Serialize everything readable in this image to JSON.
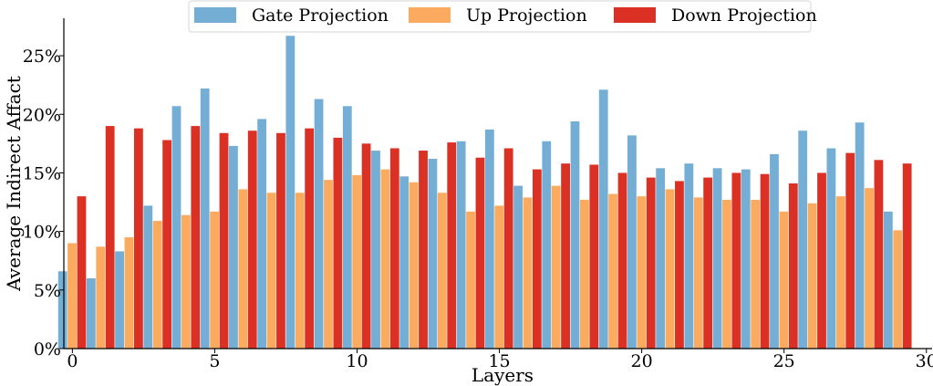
{
  "chart_data": {
    "type": "bar",
    "title": "",
    "xlabel": "Layers",
    "ylabel": "Average Indirect Affact",
    "x": [
      0,
      1,
      2,
      3,
      4,
      5,
      6,
      7,
      8,
      9,
      10,
      11,
      12,
      13,
      14,
      15,
      16,
      17,
      18,
      19,
      20,
      21,
      22,
      23,
      24,
      25,
      26,
      27,
      28,
      29
    ],
    "xticks": [
      0,
      5,
      10,
      15,
      20,
      25,
      30
    ],
    "xlim": [
      -0.3,
      30.2
    ],
    "yticks": [
      0,
      5,
      10,
      15,
      20,
      25
    ],
    "ytick_labels": [
      "0%",
      "5%",
      "10%",
      "15%",
      "20%",
      "25%"
    ],
    "ylim": [
      0,
      28.2
    ],
    "grid": false,
    "legend_position": "top-center",
    "series": [
      {
        "name": "Gate Projection",
        "color": "#74aed4",
        "values": [
          6.6,
          6.0,
          8.3,
          12.2,
          20.7,
          22.2,
          17.3,
          19.6,
          26.7,
          21.3,
          20.7,
          16.9,
          14.7,
          16.2,
          17.7,
          18.7,
          13.9,
          17.7,
          19.4,
          22.1,
          18.2,
          15.4,
          15.8,
          15.4,
          15.3,
          16.6,
          18.6,
          17.1,
          19.3,
          11.7
        ]
      },
      {
        "name": "Up Projection",
        "color": "#fbab60",
        "values": [
          9.0,
          8.7,
          9.5,
          10.9,
          11.4,
          11.7,
          13.6,
          13.3,
          13.3,
          14.4,
          14.8,
          15.3,
          14.2,
          13.3,
          11.7,
          12.2,
          12.9,
          13.9,
          12.7,
          13.2,
          13.0,
          13.6,
          12.9,
          12.7,
          12.7,
          11.7,
          12.4,
          13.0,
          13.7,
          10.1
        ]
      },
      {
        "name": "Down Projection",
        "color": "#db3124",
        "values": [
          13.0,
          19.0,
          18.8,
          17.8,
          19.0,
          18.4,
          18.6,
          18.4,
          18.8,
          18.0,
          17.5,
          17.1,
          16.9,
          17.6,
          16.3,
          17.1,
          15.3,
          15.8,
          15.7,
          15.0,
          14.6,
          14.3,
          14.6,
          15.0,
          14.9,
          14.1,
          15.0,
          16.7,
          16.1,
          15.8
        ]
      }
    ]
  }
}
